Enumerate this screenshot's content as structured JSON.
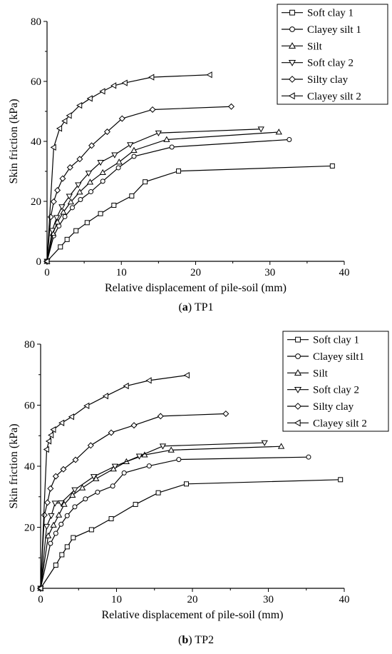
{
  "chart_data": [
    {
      "type": "line",
      "caption_label": "a",
      "caption_text": "TP1",
      "xlabel": "Relative displacement of pile-soil (mm)",
      "ylabel": "Skin friction (kPa)",
      "xlim": [
        0,
        40
      ],
      "ylim": [
        0,
        80
      ],
      "xticks": [
        0,
        10,
        20,
        30,
        40
      ],
      "yticks": [
        0,
        20,
        40,
        60,
        80
      ],
      "legend_position": "top-right",
      "series": [
        {
          "name": "Soft clay 1",
          "marker": "square",
          "x": [
            0,
            1.8,
            2.7,
            3.9,
            5.4,
            7.2,
            9.0,
            11.4,
            13.2,
            17.7,
            38.4
          ],
          "y": [
            0,
            4.8,
            7.3,
            10.2,
            12.9,
            15.9,
            18.7,
            21.8,
            26.5,
            30.1,
            31.8
          ]
        },
        {
          "name": "Clayey silt 1",
          "marker": "circle",
          "x": [
            0,
            0.9,
            1.6,
            2.4,
            3.4,
            4.5,
            5.9,
            7.5,
            9.6,
            11.7,
            16.8,
            32.6
          ],
          "y": [
            0,
            8.5,
            11.8,
            14.9,
            17.9,
            20.6,
            23.2,
            26.7,
            31.2,
            35.0,
            38.1,
            40.6
          ]
        },
        {
          "name": "Silt",
          "marker": "triangle-up",
          "x": [
            0,
            0.8,
            1.4,
            2.2,
            3.2,
            4.4,
            5.8,
            7.5,
            9.7,
            11.7,
            16.1,
            31.2
          ],
          "y": [
            0,
            9.3,
            13.1,
            16.4,
            19.8,
            23.1,
            26.4,
            29.6,
            33.1,
            37.0,
            40.6,
            43.1
          ]
        },
        {
          "name": "Soft clay 2",
          "marker": "triangle-down",
          "x": [
            0,
            0.7,
            1.3,
            2.0,
            3.0,
            4.2,
            5.6,
            7.2,
            9.1,
            11.2,
            15.0,
            28.8
          ],
          "y": [
            0,
            10.3,
            14.6,
            18.2,
            21.7,
            25.5,
            29.4,
            33.0,
            35.5,
            38.9,
            42.8,
            44.1
          ]
        },
        {
          "name": "Silty clay",
          "marker": "diamond",
          "x": [
            0,
            0.5,
            0.9,
            1.4,
            2.1,
            3.1,
            4.4,
            6.0,
            8.1,
            10.1,
            14.2,
            24.8
          ],
          "y": [
            0,
            14.8,
            19.9,
            23.7,
            27.6,
            31.3,
            34.1,
            38.6,
            43.2,
            47.6,
            50.6,
            51.6
          ]
        },
        {
          "name": "Clayey silt 2",
          "marker": "triangle-left",
          "x": [
            0,
            0.9,
            1.7,
            2.4,
            3.0,
            4.4,
            5.8,
            7.5,
            9.0,
            10.5,
            14.1,
            21.9
          ],
          "y": [
            0,
            38.0,
            44.3,
            46.8,
            48.6,
            52.0,
            54.3,
            56.7,
            58.6,
            59.5,
            61.4,
            62.2
          ]
        }
      ]
    },
    {
      "type": "line",
      "caption_label": "b",
      "caption_text": "TP2",
      "xlabel": "Relative displacement of pile-soil (mm)",
      "ylabel": "Skin friction (kPa)",
      "xlim": [
        0,
        40
      ],
      "ylim": [
        0,
        80
      ],
      "xticks": [
        0,
        10,
        20,
        30,
        40
      ],
      "yticks": [
        0,
        20,
        40,
        60,
        80
      ],
      "legend_position": "top-right",
      "series": [
        {
          "name": "Soft clay 1",
          "marker": "square",
          "x": [
            0,
            2.0,
            2.8,
            3.5,
            4.3,
            6.7,
            9.3,
            12.5,
            15.5,
            19.2,
            39.5
          ],
          "y": [
            0,
            7.6,
            11.0,
            13.6,
            16.6,
            19.2,
            22.8,
            27.5,
            31.3,
            34.2,
            35.6
          ]
        },
        {
          "name": "Clayey silt1",
          "marker": "circle",
          "x": [
            0,
            1.3,
            2.0,
            2.7,
            3.5,
            4.5,
            5.9,
            7.5,
            9.5,
            11.0,
            14.3,
            18.2,
            35.3
          ],
          "y": [
            0,
            14.7,
            18.0,
            21.0,
            23.8,
            26.7,
            29.3,
            31.5,
            33.5,
            37.8,
            40.1,
            42.2,
            43.0
          ]
        },
        {
          "name": "Silt",
          "marker": "triangle-up",
          "x": [
            0,
            1.0,
            1.7,
            2.4,
            3.1,
            4.2,
            5.5,
            7.3,
            9.6,
            11.3,
            13.7,
            17.2,
            31.7
          ],
          "y": [
            0,
            17.2,
            20.7,
            24.0,
            27.5,
            30.5,
            32.9,
            35.9,
            39.1,
            41.5,
            43.7,
            45.3,
            46.5
          ]
        },
        {
          "name": "Soft clay 2",
          "marker": "triangle-down",
          "x": [
            0,
            0.8,
            1.4,
            1.9,
            2.7,
            4.5,
            7.0,
            9.8,
            13.0,
            16.1,
            29.5
          ],
          "y": [
            0,
            20.3,
            23.8,
            27.9,
            28.0,
            32.3,
            36.6,
            40.0,
            43.3,
            46.6,
            47.7
          ]
        },
        {
          "name": "Silty clay",
          "marker": "diamond",
          "x": [
            0,
            0.5,
            0.9,
            1.3,
            2.0,
            3.0,
            4.6,
            6.6,
            9.3,
            12.3,
            15.8,
            24.4
          ],
          "y": [
            0,
            24.0,
            28.1,
            32.7,
            36.7,
            39.0,
            42.1,
            46.8,
            51.0,
            53.4,
            56.4,
            57.2
          ]
        },
        {
          "name": "Clayey silt 2",
          "marker": "triangle-left",
          "x": [
            0,
            0.8,
            1.1,
            1.4,
            1.7,
            2.8,
            4.1,
            6.1,
            8.6,
            11.3,
            14.3,
            19.3
          ],
          "y": [
            0,
            45.5,
            48.2,
            50.2,
            52.0,
            54.2,
            56.2,
            59.8,
            63.0,
            66.3,
            68.1,
            69.8
          ]
        }
      ]
    }
  ]
}
